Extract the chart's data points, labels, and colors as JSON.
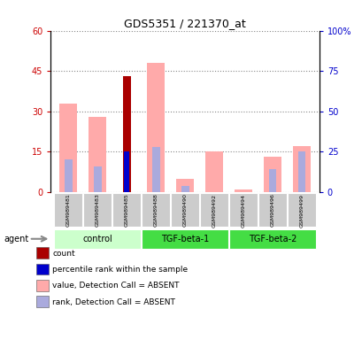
{
  "title": "GDS5351 / 221370_at",
  "samples": [
    "GSM989481",
    "GSM989483",
    "GSM989485",
    "GSM989488",
    "GSM989490",
    "GSM989492",
    "GSM989494",
    "GSM989496",
    "GSM989499"
  ],
  "groups_info": [
    {
      "name": "control",
      "start": 0,
      "end": 2,
      "color": "#ccffcc"
    },
    {
      "name": "TGF-beta-1",
      "start": 3,
      "end": 5,
      "color": "#44dd44"
    },
    {
      "name": "TGF-beta-2",
      "start": 6,
      "end": 8,
      "color": "#44dd44"
    }
  ],
  "count_values": [
    0,
    0,
    43,
    0,
    0,
    0,
    0,
    0,
    0
  ],
  "count_color": "#aa0000",
  "rank_values_pct": [
    0,
    0,
    25,
    0,
    0,
    0,
    0,
    0,
    0
  ],
  "rank_color": "#0000cc",
  "absent_value_values": [
    33,
    28,
    0,
    48,
    5,
    15,
    1,
    13,
    17
  ],
  "absent_value_color": "#ffaaaa",
  "absent_rank_values_pct": [
    20,
    16,
    0,
    28,
    4,
    0,
    0,
    14,
    25
  ],
  "absent_rank_color": "#aaaadd",
  "ylim_left": [
    0,
    60
  ],
  "ylim_right": [
    0,
    100
  ],
  "yticks_left": [
    0,
    15,
    30,
    45,
    60
  ],
  "yticks_right": [
    0,
    25,
    50,
    75,
    100
  ],
  "ytick_labels_left": [
    "0",
    "15",
    "30",
    "45",
    "60"
  ],
  "ytick_labels_right": [
    "0",
    "25",
    "50",
    "75",
    "100%"
  ],
  "bar_width": 0.6,
  "legend_items": [
    {
      "color": "#aa0000",
      "label": "count",
      "marker": "s"
    },
    {
      "color": "#0000cc",
      "label": "percentile rank within the sample",
      "marker": "s"
    },
    {
      "color": "#ffaaaa",
      "label": "value, Detection Call = ABSENT",
      "marker": "s"
    },
    {
      "color": "#aaaadd",
      "label": "rank, Detection Call = ABSENT",
      "marker": "s"
    }
  ],
  "agent_label": "agent",
  "background_color": "#ffffff"
}
